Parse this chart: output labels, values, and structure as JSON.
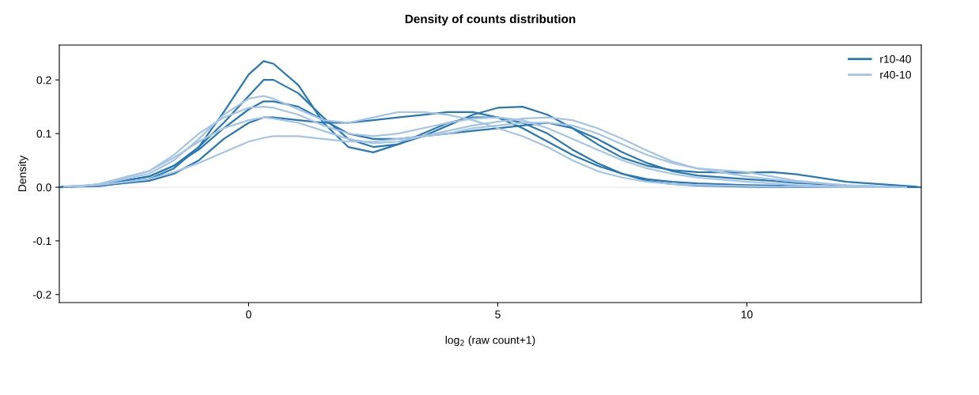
{
  "chart_data": {
    "type": "line",
    "title": "Density of counts distribution",
    "xlabel": "log$_{2}$ (raw count+1)",
    "ylabel": "Density",
    "xlim": [
      -3.8,
      13.5
    ],
    "ylim": [
      -0.215,
      0.265
    ],
    "xticks": [
      0,
      5,
      10
    ],
    "yticks": [
      -0.2,
      -0.1,
      {
        "value": 0,
        "label": "0.0"
      },
      0.1,
      0.2
    ],
    "grid": false,
    "legend": "top right",
    "line_style": "solid",
    "marker": "none",
    "ref_lines": [
      {
        "axis": "y",
        "value": 0,
        "color": "#eeeeee"
      }
    ],
    "series": [
      {
        "name": "r10-40",
        "color": "#2878b5",
        "x": [
          -3.8,
          -3,
          -2,
          -1.5,
          -1,
          -0.5,
          0,
          0.3,
          0.5,
          1,
          1.5,
          2,
          2.5,
          3,
          3.5,
          4,
          4.5,
          5,
          5.5,
          6,
          6.5,
          7,
          7.5,
          8,
          8.5,
          9,
          10,
          10.5,
          11,
          12,
          13.5
        ],
        "values": [
          0,
          0.002,
          0.015,
          0.035,
          0.075,
          0.14,
          0.21,
          0.235,
          0.23,
          0.19,
          0.12,
          0.075,
          0.065,
          0.08,
          0.1,
          0.12,
          0.13,
          0.13,
          0.12,
          0.1,
          0.07,
          0.045,
          0.025,
          0.012,
          0.006,
          0.003,
          0.001,
          0,
          0,
          0,
          0
        ]
      },
      {
        "color": "#2878b5",
        "x": [
          -3.75,
          -3,
          -2,
          -1.5,
          -1,
          -0.5,
          0,
          0.3,
          0.5,
          1,
          1.5,
          2,
          2.5,
          3,
          3.5,
          4,
          4.5,
          5,
          5.5,
          6,
          6.5,
          7,
          7.5,
          8,
          8.5,
          9,
          10,
          10.5,
          11,
          12,
          13.4
        ],
        "values": [
          0.001,
          0.004,
          0.02,
          0.04,
          0.075,
          0.12,
          0.17,
          0.2,
          0.2,
          0.175,
          0.13,
          0.09,
          0.075,
          0.08,
          0.095,
          0.115,
          0.135,
          0.148,
          0.15,
          0.135,
          0.11,
          0.08,
          0.055,
          0.04,
          0.032,
          0.028,
          0.027,
          0.028,
          0.024,
          0.01,
          0.001
        ]
      },
      {
        "color": "#2878b5",
        "x": [
          -3.65,
          -3,
          -2,
          -1.5,
          -1,
          -0.5,
          0,
          0.3,
          0.5,
          1,
          1.5,
          2,
          2.5,
          3,
          3.5,
          4,
          4.5,
          5,
          5.5,
          6,
          6.5,
          7,
          7.5,
          8,
          8.5,
          9,
          10,
          10.5,
          11,
          12,
          13.3
        ],
        "values": [
          0.001,
          0.003,
          0.012,
          0.025,
          0.05,
          0.09,
          0.12,
          0.13,
          0.13,
          0.125,
          0.12,
          0.12,
          0.125,
          0.13,
          0.135,
          0.14,
          0.14,
          0.13,
          0.11,
          0.085,
          0.06,
          0.04,
          0.025,
          0.015,
          0.01,
          0.007,
          0.004,
          0.003,
          0.002,
          0.001,
          0
        ]
      },
      {
        "color": "#2878b5",
        "x": [
          -3.55,
          -3,
          -2,
          -1.5,
          -1,
          -0.5,
          0,
          0.3,
          0.5,
          1,
          1.5,
          2,
          2.5,
          3,
          3.5,
          4,
          4.5,
          5,
          5.5,
          6,
          6.5,
          7,
          7.5,
          8,
          8.5,
          9,
          10,
          10.5,
          11,
          12,
          13.1
        ],
        "values": [
          0.001,
          0.004,
          0.02,
          0.04,
          0.07,
          0.11,
          0.145,
          0.16,
          0.16,
          0.15,
          0.125,
          0.1,
          0.09,
          0.09,
          0.095,
          0.1,
          0.105,
          0.11,
          0.115,
          0.12,
          0.11,
          0.09,
          0.065,
          0.045,
          0.03,
          0.022,
          0.015,
          0.012,
          0.008,
          0.003,
          0
        ]
      },
      {
        "name": "r40-10",
        "color": "#a6c4e3",
        "x": [
          -3.6,
          -3,
          -2,
          -1.5,
          -1,
          -0.5,
          0,
          0.3,
          0.5,
          1,
          1.5,
          2,
          2.5,
          3,
          3.5,
          4,
          4.5,
          5,
          5.5,
          6,
          6.5,
          7,
          7.5,
          8,
          8.5,
          9,
          10,
          10.5,
          11,
          12,
          13.0
        ],
        "values": [
          0.001,
          0.004,
          0.015,
          0.028,
          0.045,
          0.065,
          0.085,
          0.092,
          0.095,
          0.095,
          0.09,
          0.085,
          0.085,
          0.09,
          0.095,
          0.1,
          0.11,
          0.115,
          0.12,
          0.12,
          0.115,
          0.1,
          0.08,
          0.06,
          0.045,
          0.035,
          0.028,
          0.02,
          0.012,
          0.003,
          0
        ]
      },
      {
        "color": "#a6c4e3",
        "x": [
          -3.7,
          -3,
          -2,
          -1.5,
          -1,
          -0.5,
          0,
          0.3,
          0.5,
          1,
          1.5,
          2,
          2.5,
          3,
          3.5,
          4,
          4.5,
          5,
          5.5,
          6,
          6.5,
          7,
          7.5,
          8,
          8.5,
          9,
          10,
          10.5,
          11,
          12,
          12.8
        ],
        "values": [
          0.001,
          0.005,
          0.025,
          0.05,
          0.09,
          0.135,
          0.165,
          0.17,
          0.165,
          0.145,
          0.125,
          0.12,
          0.13,
          0.14,
          0.14,
          0.135,
          0.125,
          0.11,
          0.095,
          0.075,
          0.05,
          0.03,
          0.018,
          0.01,
          0.006,
          0.004,
          0.002,
          0.001,
          0.001,
          0,
          0
        ]
      },
      {
        "color": "#a6c4e3",
        "x": [
          -3.5,
          -3,
          -2,
          -1.5,
          -1,
          -0.5,
          0,
          0.3,
          0.5,
          1,
          1.5,
          2,
          2.5,
          3,
          3.5,
          4,
          4.5,
          5,
          5.5,
          6,
          6.5,
          7,
          7.5,
          8,
          8.5,
          9,
          10,
          10.5,
          11,
          12,
          13.2
        ],
        "values": [
          0.001,
          0.006,
          0.03,
          0.055,
          0.085,
          0.11,
          0.125,
          0.13,
          0.128,
          0.12,
          0.105,
          0.09,
          0.082,
          0.085,
          0.095,
          0.105,
          0.115,
          0.122,
          0.128,
          0.13,
          0.125,
          0.11,
          0.09,
          0.068,
          0.048,
          0.035,
          0.02,
          0.015,
          0.01,
          0.004,
          0
        ]
      },
      {
        "color": "#a6c4e3",
        "x": [
          -3.4,
          -3,
          -2,
          -1.5,
          -1,
          -0.5,
          0,
          0.3,
          0.5,
          1,
          1.5,
          2,
          2.5,
          3,
          3.5,
          4,
          4.5,
          5,
          5.5,
          6,
          6.5,
          7,
          7.5,
          8,
          8.5,
          9,
          10,
          10.5,
          11,
          12,
          12.9
        ],
        "values": [
          0.001,
          0.006,
          0.03,
          0.06,
          0.1,
          0.13,
          0.148,
          0.15,
          0.148,
          0.135,
          0.115,
          0.1,
          0.095,
          0.1,
          0.11,
          0.12,
          0.128,
          0.13,
          0.125,
          0.11,
          0.09,
          0.07,
          0.05,
          0.035,
          0.025,
          0.018,
          0.01,
          0.007,
          0.004,
          0.001,
          0
        ]
      }
    ]
  }
}
